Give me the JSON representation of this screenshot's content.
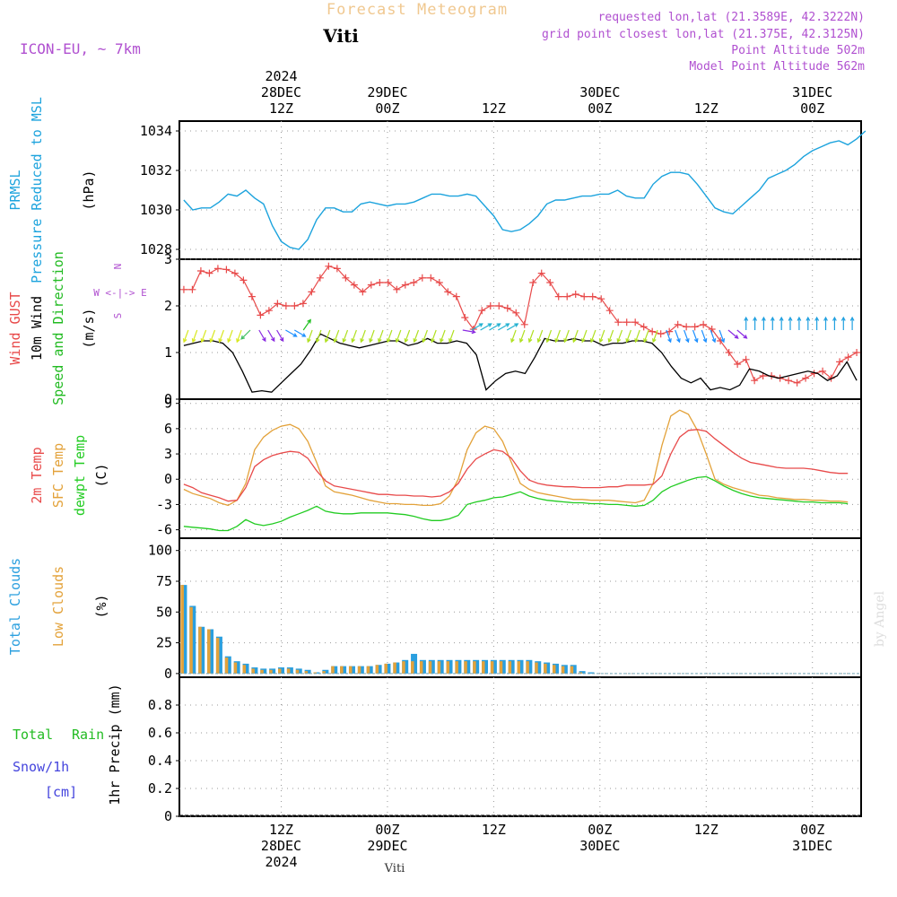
{
  "header": {
    "main_title": "Forecast Meteogram",
    "station": "Viti",
    "model": "ICON-EU, ~ 7km",
    "requested": "requested lon,lat (21.3589E, 42.3222N)",
    "grid_point": "grid point closest lon,lat (21.375E, 42.3125N)",
    "point_altitude": "Point Altitude 502m",
    "model_altitude": "Model Point Altitude 562m",
    "footer_station": "Viti",
    "watermark": "by Angel"
  },
  "time_axis": {
    "top": [
      {
        "lines": [
          "2024",
          "28DEC",
          "12Z"
        ],
        "x_hours": 12
      },
      {
        "lines": [
          "29DEC",
          "00Z"
        ],
        "x_hours": 24
      },
      {
        "lines": [
          "12Z"
        ],
        "x_hours": 36
      },
      {
        "lines": [
          "30DEC",
          "00Z"
        ],
        "x_hours": 48
      },
      {
        "lines": [
          "12Z"
        ],
        "x_hours": 60
      },
      {
        "lines": [
          "31DEC",
          "00Z"
        ],
        "x_hours": 72
      }
    ],
    "bottom": [
      {
        "lines": [
          "12Z",
          "28DEC",
          "2024"
        ],
        "x_hours": 12
      },
      {
        "lines": [
          "00Z",
          "29DEC"
        ],
        "x_hours": 24
      },
      {
        "lines": [
          "12Z"
        ],
        "x_hours": 36
      },
      {
        "lines": [
          "00Z",
          "30DEC"
        ],
        "x_hours": 48
      },
      {
        "lines": [
          "12Z"
        ],
        "x_hours": 60
      },
      {
        "lines": [
          "00Z",
          "31DEC"
        ],
        "x_hours": 72
      }
    ]
  },
  "colors": {
    "pressure": "#1ca3dd",
    "gust": "#e84a4a",
    "wind": "#000000",
    "wind_label": "#22bb22",
    "t2m": "#e84a4a",
    "tsfc": "#e3a23a",
    "dewpt": "#22cc22",
    "total_clouds": "#2a9fdf",
    "low_clouds": "#e3a23a",
    "rain": "#22bb22",
    "snow": "#4444dd",
    "header_purple": "#b050d0",
    "title_orange": "#f0c890",
    "compass": "#b050d0"
  },
  "chart_data": [
    {
      "type": "line",
      "panel": "pressure",
      "ylabel_lines": [
        "PRMSL",
        "Pressure Reduced to MSL"
      ],
      "unit": "(hPa)",
      "ylim": [
        1027.5,
        1034.5
      ],
      "yticks": [
        1028,
        1030,
        1032,
        1034
      ],
      "x_hours_start": 1,
      "x_hours_end": 77,
      "grid": true,
      "series": [
        {
          "values": [
            1030.5,
            1030.0,
            1030.1,
            1030.1,
            1030.4,
            1030.8,
            1030.7,
            1031.0,
            1030.6,
            1030.3,
            1029.2,
            1028.4,
            1028.1,
            1028.0,
            1028.5,
            1029.5,
            1030.1,
            1030.1,
            1029.9,
            1029.9,
            1030.3,
            1030.4,
            1030.3,
            1030.2,
            1030.3,
            1030.3,
            1030.4,
            1030.6,
            1030.8,
            1030.8,
            1030.7,
            1030.7,
            1030.8,
            1030.7,
            1030.2,
            1029.7,
            1029.0,
            1028.9,
            1029.0,
            1029.3,
            1029.7,
            1030.3,
            1030.5,
            1030.5,
            1030.6,
            1030.7,
            1030.7,
            1030.8,
            1030.8,
            1031.0,
            1030.7,
            1030.6,
            1030.6,
            1031.3,
            1031.7,
            1031.9,
            1031.9,
            1031.8,
            1031.3,
            1030.7,
            1030.1,
            1029.9,
            1029.8,
            1030.2,
            1030.6,
            1031.0,
            1031.6,
            1031.8,
            1032.0,
            1032.3,
            1032.7,
            1033.0,
            1033.2,
            1033.4,
            1033.5,
            1033.3,
            1033.6,
            1034.0
          ]
        }
      ]
    },
    {
      "type": "line",
      "panel": "wind",
      "ylabel_lines": [
        "Wind GUST",
        "10m Wind",
        "Speed and Direction"
      ],
      "unit": "(m/s)",
      "compass": [
        "N",
        "W <-|-> E",
        "S"
      ],
      "ylim": [
        0,
        3
      ],
      "yticks": [
        0,
        1,
        2,
        3
      ],
      "x_hours_start": 1,
      "x_hours_end": 77,
      "grid": true,
      "series": [
        {
          "name": "Wind GUST",
          "values": [
            2.35,
            2.35,
            2.75,
            2.7,
            2.8,
            2.78,
            2.7,
            2.55,
            2.2,
            1.8,
            1.9,
            2.05,
            2.0,
            2.0,
            2.05,
            2.3,
            2.6,
            2.85,
            2.8,
            2.6,
            2.45,
            2.3,
            2.45,
            2.5,
            2.5,
            2.35,
            2.45,
            2.5,
            2.6,
            2.6,
            2.5,
            2.3,
            2.2,
            1.75,
            1.5,
            1.9,
            2.0,
            2.0,
            1.95,
            1.85,
            1.6,
            2.5,
            2.7,
            2.5,
            2.2,
            2.2,
            2.25,
            2.2,
            2.2,
            2.15,
            1.9,
            1.65,
            1.65,
            1.65,
            1.55,
            1.45,
            1.4,
            1.45,
            1.6,
            1.55,
            1.55,
            1.6,
            1.5,
            1.25,
            1.0,
            0.75,
            0.85,
            0.4,
            0.5,
            0.5,
            0.45,
            0.4,
            0.35,
            0.45,
            0.55,
            0.6,
            0.45,
            0.8,
            0.9,
            1.0
          ]
        },
        {
          "name": "10m Wind",
          "values": [
            1.15,
            1.2,
            1.25,
            1.25,
            1.2,
            1.0,
            0.6,
            0.15,
            0.18,
            0.15,
            0.35,
            0.55,
            0.75,
            1.05,
            1.4,
            1.3,
            1.2,
            1.15,
            1.1,
            1.15,
            1.2,
            1.25,
            1.25,
            1.15,
            1.2,
            1.3,
            1.2,
            1.2,
            1.25,
            1.2,
            0.95,
            0.2,
            0.4,
            0.55,
            0.6,
            0.55,
            0.9,
            1.3,
            1.25,
            1.25,
            1.3,
            1.25,
            1.25,
            1.15,
            1.2,
            1.2,
            1.25,
            1.25,
            1.2,
            1.0,
            0.7,
            0.45,
            0.35,
            0.45,
            0.2,
            0.25,
            0.2,
            0.3,
            0.65,
            0.6,
            0.5,
            0.45,
            0.5,
            0.55,
            0.6,
            0.55,
            0.4,
            0.5,
            0.8,
            0.4
          ]
        }
      ],
      "arrows": {
        "segments": [
          {
            "from_hour": 1,
            "to_hour": 8,
            "color": "#d8e820",
            "angle": 200
          },
          {
            "from_hour": 8,
            "to_hour": 9,
            "color": "#40c060",
            "angle": 225
          },
          {
            "from_hour": 9,
            "to_hour": 12,
            "color": "#8a2be2",
            "angle": 150
          },
          {
            "from_hour": 12,
            "to_hour": 14,
            "color": "#1e90ff",
            "angle": 120
          },
          {
            "from_hour": 14,
            "to_hour": 15,
            "color": "#20c020",
            "angle": 35
          },
          {
            "from_hour": 15,
            "to_hour": 32,
            "color": "#b0e020",
            "angle": 200
          },
          {
            "from_hour": 32,
            "to_hour": 33,
            "color": "#8a2be2",
            "angle": 100
          },
          {
            "from_hour": 33,
            "to_hour": 38,
            "color": "#20b0d0",
            "angle": 60
          },
          {
            "from_hour": 38,
            "to_hour": 55,
            "color": "#b0e020",
            "angle": 200
          },
          {
            "from_hour": 55,
            "to_hour": 62,
            "color": "#1e90ff",
            "angle": 160
          },
          {
            "from_hour": 62,
            "to_hour": 64,
            "color": "#8a2be2",
            "angle": 130
          },
          {
            "from_hour": 64,
            "to_hour": 77,
            "color": "#20a0e0",
            "angle": 0
          }
        ]
      }
    },
    {
      "type": "line",
      "panel": "temperature",
      "ylabel_lines": [
        "2m Temp",
        "SFC Temp",
        "dewpt Temp"
      ],
      "unit": "(C)",
      "ylim": [
        -7,
        9.5
      ],
      "yticks": [
        -6,
        -3,
        0,
        3,
        6,
        9
      ],
      "x_hours_start": 1,
      "x_hours_end": 77,
      "grid": true,
      "series": [
        {
          "name": "2m Temp",
          "values": [
            -0.6,
            -1.0,
            -1.6,
            -1.9,
            -2.2,
            -2.6,
            -2.5,
            -1.0,
            1.5,
            2.3,
            2.8,
            3.1,
            3.3,
            3.2,
            2.5,
            1.0,
            -0.2,
            -0.8,
            -1.0,
            -1.2,
            -1.4,
            -1.6,
            -1.8,
            -1.8,
            -1.9,
            -1.9,
            -2.0,
            -2.0,
            -2.1,
            -2.0,
            -1.5,
            -0.5,
            1.2,
            2.4,
            3.0,
            3.5,
            3.3,
            2.5,
            1.0,
            -0.1,
            -0.5,
            -0.7,
            -0.8,
            -0.9,
            -0.9,
            -1.0,
            -1.0,
            -1.0,
            -0.9,
            -0.9,
            -0.7,
            -0.7,
            -0.7,
            -0.6,
            0.4,
            3.0,
            5.0,
            5.8,
            5.9,
            5.7,
            4.8,
            4.0,
            3.2,
            2.5,
            2.0,
            1.8,
            1.6,
            1.4,
            1.3,
            1.3,
            1.3,
            1.2,
            1.0,
            0.8,
            0.7,
            0.7
          ]
        },
        {
          "name": "SFC Temp",
          "values": [
            -1.2,
            -1.7,
            -2.0,
            -2.3,
            -2.8,
            -3.1,
            -2.5,
            -0.5,
            3.5,
            5.0,
            5.8,
            6.3,
            6.5,
            6.0,
            4.5,
            2.0,
            -0.8,
            -1.5,
            -1.7,
            -1.9,
            -2.2,
            -2.5,
            -2.7,
            -2.9,
            -2.9,
            -3.0,
            -3.0,
            -3.1,
            -3.1,
            -2.9,
            -2.0,
            0.0,
            3.5,
            5.5,
            6.3,
            6.0,
            4.5,
            2.0,
            -0.5,
            -1.2,
            -1.6,
            -1.8,
            -2.0,
            -2.2,
            -2.4,
            -2.4,
            -2.5,
            -2.5,
            -2.5,
            -2.6,
            -2.7,
            -2.8,
            -2.5,
            -0.5,
            4.0,
            7.5,
            8.2,
            7.7,
            5.8,
            3.0,
            0.0,
            -0.6,
            -1.0,
            -1.3,
            -1.6,
            -1.9,
            -2.0,
            -2.2,
            -2.3,
            -2.4,
            -2.4,
            -2.5,
            -2.5,
            -2.6,
            -2.6,
            -2.7
          ]
        },
        {
          "name": "dewpt Temp",
          "values": [
            -5.6,
            -5.7,
            -5.8,
            -5.9,
            -6.1,
            -6.1,
            -5.6,
            -4.8,
            -5.3,
            -5.5,
            -5.3,
            -5.0,
            -4.5,
            -4.1,
            -3.7,
            -3.2,
            -3.8,
            -4.0,
            -4.1,
            -4.1,
            -4.0,
            -4.0,
            -4.0,
            -4.0,
            -4.1,
            -4.2,
            -4.4,
            -4.7,
            -4.9,
            -4.9,
            -4.7,
            -4.3,
            -3.0,
            -2.7,
            -2.5,
            -2.2,
            -2.1,
            -1.8,
            -1.5,
            -2.0,
            -2.3,
            -2.5,
            -2.6,
            -2.7,
            -2.8,
            -2.8,
            -2.9,
            -2.9,
            -3.0,
            -3.0,
            -3.1,
            -3.2,
            -3.1,
            -2.5,
            -1.5,
            -0.9,
            -0.5,
            -0.1,
            0.2,
            0.3,
            -0.2,
            -0.8,
            -1.3,
            -1.7,
            -2.0,
            -2.2,
            -2.3,
            -2.4,
            -2.5,
            -2.6,
            -2.7,
            -2.7,
            -2.8,
            -2.8,
            -2.8,
            -2.9
          ]
        }
      ]
    },
    {
      "type": "bar",
      "panel": "clouds",
      "ylabel_lines": [
        "Total Clouds",
        "Low Clouds"
      ],
      "unit": "(%)",
      "ylim": [
        -3,
        110
      ],
      "yticks": [
        0,
        25,
        50,
        75,
        100
      ],
      "x_hours_start": 1,
      "x_hours_end": 77,
      "grid": true,
      "series": [
        {
          "name": "Total Clouds",
          "values": [
            72,
            55,
            38,
            36,
            30,
            14,
            10,
            8,
            5,
            4,
            4,
            5,
            5,
            4,
            3,
            1,
            3,
            6,
            6,
            6,
            6,
            6,
            7,
            8,
            9,
            11,
            16,
            11,
            11,
            11,
            11,
            11,
            11,
            11,
            11,
            11,
            11,
            11,
            11,
            11,
            10,
            9,
            8,
            7,
            7,
            2,
            1,
            0,
            0,
            0,
            0,
            0,
            0,
            0,
            0,
            0,
            0,
            0,
            0,
            0,
            0,
            0,
            0,
            0,
            0,
            0,
            0,
            0,
            0,
            0,
            0,
            0,
            0,
            0,
            0,
            0,
            0
          ]
        },
        {
          "name": "Low Clouds",
          "values": [
            72,
            54,
            38,
            36,
            29,
            13,
            9,
            7,
            4,
            3,
            3,
            4,
            4,
            3,
            2,
            1,
            2,
            6,
            6,
            6,
            6,
            6,
            7,
            8,
            9,
            10,
            10,
            10,
            10,
            10,
            10,
            10,
            10,
            10,
            10,
            10,
            10,
            10,
            10,
            10,
            9,
            8,
            7,
            6,
            6,
            1,
            0,
            0,
            0,
            0,
            0,
            0,
            0,
            0,
            0,
            0,
            0,
            0,
            0,
            0,
            0,
            0,
            0,
            0,
            0,
            0,
            0,
            0,
            0,
            0,
            0,
            0,
            0,
            0,
            0,
            0,
            0
          ]
        }
      ]
    },
    {
      "type": "bar",
      "panel": "precip",
      "ylabel_lines": [
        "1hr Precip (mm)"
      ],
      "legend": [
        "Total",
        "Rain",
        "Snow/1h",
        "[cm]"
      ],
      "ylim": [
        0,
        1.0
      ],
      "yticks": [
        0,
        0.2,
        0.4,
        0.6,
        0.8
      ],
      "x_hours_start": 1,
      "x_hours_end": 77,
      "grid": true,
      "series": [
        {
          "name": "Total",
          "values": []
        },
        {
          "name": "Rain",
          "values": []
        }
      ]
    }
  ]
}
